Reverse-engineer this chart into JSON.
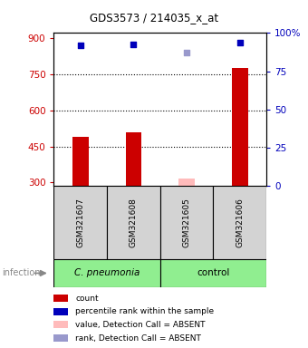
{
  "title": "GDS3573 / 214035_x_at",
  "samples": [
    "GSM321607",
    "GSM321608",
    "GSM321605",
    "GSM321606"
  ],
  "bar_values": [
    490,
    510,
    315,
    775
  ],
  "bar_colors": [
    "#cc0000",
    "#cc0000",
    "#ffbbbb",
    "#cc0000"
  ],
  "dot_values": [
    870,
    873,
    840,
    880
  ],
  "dot_colors": [
    "#0000bb",
    "#0000bb",
    "#9999cc",
    "#0000bb"
  ],
  "ylim_left": [
    285,
    920
  ],
  "ylim_right": [
    0,
    100
  ],
  "yticks_left": [
    300,
    450,
    600,
    750,
    900
  ],
  "yticks_right": [
    0,
    25,
    50,
    75,
    100
  ],
  "ytick_labels_left": [
    "300",
    "450",
    "600",
    "750",
    "900"
  ],
  "ytick_labels_right": [
    "0",
    "25",
    "50",
    "75",
    "100%"
  ],
  "grid_values": [
    450,
    600,
    750
  ],
  "legend_items": [
    {
      "color": "#cc0000",
      "label": "count"
    },
    {
      "color": "#0000bb",
      "label": "percentile rank within the sample"
    },
    {
      "color": "#ffbbbb",
      "label": "value, Detection Call = ABSENT"
    },
    {
      "color": "#9999cc",
      "label": "rank, Detection Call = ABSENT"
    }
  ],
  "group_label": "infection",
  "group_configs": [
    [
      0,
      2,
      "C. pneumonia"
    ],
    [
      2,
      4,
      "control"
    ]
  ],
  "left_tick_color": "#cc0000",
  "right_tick_color": "#0000bb"
}
